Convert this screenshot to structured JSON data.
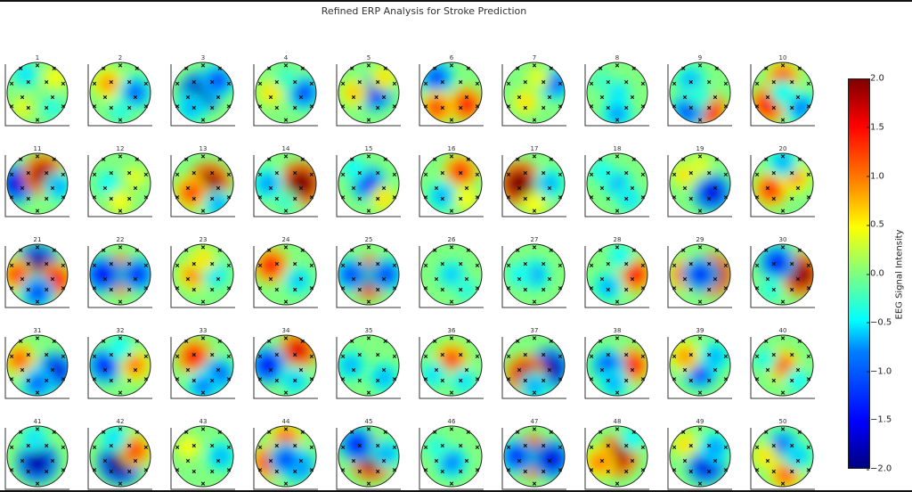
{
  "chart_data": {
    "type": "heatmap",
    "title": "Refined ERP Analysis for Stroke Prediction",
    "subplots": [
      {
        "label": "1",
        "blobs": [
          [
            -0.4,
            -0.6,
            -0.6
          ],
          [
            0.5,
            0.5,
            -0.4
          ],
          [
            0.6,
            -0.5,
            0.5
          ],
          [
            -0.5,
            0.5,
            0.4
          ]
        ]
      },
      {
        "label": "2",
        "blobs": [
          [
            -0.4,
            -0.3,
            0.9
          ],
          [
            0.5,
            0,
            -1.1
          ],
          [
            0,
            0.6,
            -0.4
          ]
        ]
      },
      {
        "label": "3",
        "blobs": [
          [
            -0.1,
            0,
            -1.8
          ],
          [
            0.5,
            -0.4,
            -1.2
          ],
          [
            -0.4,
            0.5,
            -0.8
          ]
        ]
      },
      {
        "label": "4",
        "blobs": [
          [
            -0.5,
            0,
            0.6
          ],
          [
            0.6,
            0,
            -1.2
          ],
          [
            0,
            -0.5,
            -0.3
          ]
        ]
      },
      {
        "label": "5",
        "blobs": [
          [
            0.2,
            0,
            -1.4
          ],
          [
            -0.5,
            0,
            0.7
          ],
          [
            0.5,
            -0.5,
            0.6
          ]
        ]
      },
      {
        "label": "6",
        "blobs": [
          [
            -0.5,
            -0.5,
            -1.2
          ],
          [
            0.5,
            0.4,
            1.4
          ],
          [
            -0.5,
            0.5,
            1.2
          ]
        ]
      },
      {
        "label": "7",
        "blobs": [
          [
            0.7,
            -0.3,
            -1.1
          ],
          [
            -0.3,
            0.3,
            0.6
          ],
          [
            0.1,
            -0.5,
            0.4
          ]
        ]
      },
      {
        "label": "8",
        "blobs": [
          [
            0,
            0,
            -0.6
          ],
          [
            0,
            0.7,
            -0.9
          ],
          [
            -0.5,
            -0.4,
            -0.3
          ]
        ]
      },
      {
        "label": "9",
        "blobs": [
          [
            -0.3,
            -0.4,
            -0.8
          ],
          [
            0.3,
            0.6,
            1.5
          ],
          [
            -0.4,
            0.6,
            -1.2
          ],
          [
            0,
            0.1,
            -0.4
          ]
        ]
      },
      {
        "label": "10",
        "blobs": [
          [
            0,
            -0.5,
            1.2
          ],
          [
            -0.5,
            0.4,
            1.5
          ],
          [
            0.6,
            0.5,
            -1
          ],
          [
            0,
            0,
            -0.5
          ]
        ]
      },
      {
        "label": "11",
        "blobs": [
          [
            -0.7,
            0,
            -1.6
          ],
          [
            0.2,
            -0.3,
            1.8
          ],
          [
            0.7,
            0.1,
            -0.8
          ]
        ]
      },
      {
        "label": "12",
        "blobs": [
          [
            -0.4,
            0,
            -0.5
          ],
          [
            0.5,
            -0.2,
            0.4
          ],
          [
            0,
            0.6,
            0.5
          ]
        ]
      },
      {
        "label": "13",
        "blobs": [
          [
            0.2,
            0,
            1.9
          ],
          [
            -0.4,
            0.3,
            1.2
          ],
          [
            0.5,
            0.7,
            -0.8
          ]
        ]
      },
      {
        "label": "14",
        "blobs": [
          [
            0.5,
            0,
            2
          ],
          [
            -0.6,
            0,
            -0.9
          ],
          [
            0,
            0.6,
            -0.3
          ]
        ]
      },
      {
        "label": "15",
        "blobs": [
          [
            0,
            0,
            -1.3
          ],
          [
            -0.5,
            -0.5,
            -0.5
          ],
          [
            0.5,
            0.5,
            0.6
          ]
        ]
      },
      {
        "label": "16",
        "blobs": [
          [
            0.3,
            -0.4,
            1.3
          ],
          [
            -0.3,
            0.4,
            -0.8
          ],
          [
            0.5,
            0.5,
            0.5
          ]
        ]
      },
      {
        "label": "17",
        "blobs": [
          [
            -0.5,
            0,
            2
          ],
          [
            0.5,
            0,
            -0.8
          ],
          [
            0,
            0.7,
            0.5
          ]
        ]
      },
      {
        "label": "18",
        "blobs": [
          [
            0,
            0,
            -0.8
          ],
          [
            -0.5,
            -0.4,
            -0.5
          ],
          [
            0.4,
            0.5,
            -0.6
          ]
        ]
      },
      {
        "label": "19",
        "blobs": [
          [
            0.4,
            0.3,
            -1.6
          ],
          [
            -0.5,
            -0.3,
            0.6
          ],
          [
            0,
            -0.6,
            0.4
          ]
        ]
      },
      {
        "label": "20",
        "blobs": [
          [
            -0.4,
            0.2,
            1.3
          ],
          [
            0.4,
            -0.2,
            0.9
          ],
          [
            0,
            -0.7,
            -0.8
          ]
        ]
      },
      {
        "label": "21",
        "blobs": [
          [
            0,
            -0.3,
            -1.9
          ],
          [
            0.6,
            0.2,
            1.5
          ],
          [
            -0.7,
            0,
            1.2
          ],
          [
            0,
            0.6,
            -1.2
          ]
        ]
      },
      {
        "label": "22",
        "blobs": [
          [
            0,
            0,
            1.7
          ],
          [
            -0.6,
            0,
            -1.5
          ],
          [
            0.6,
            0,
            -1.3
          ]
        ]
      },
      {
        "label": "23",
        "blobs": [
          [
            -0.3,
            0,
            1
          ],
          [
            0.4,
            0,
            -0.6
          ],
          [
            0,
            -0.5,
            0.6
          ]
        ]
      },
      {
        "label": "24",
        "blobs": [
          [
            -0.5,
            -0.3,
            1.4
          ],
          [
            0.4,
            0.2,
            -0.7
          ]
        ]
      },
      {
        "label": "25",
        "blobs": [
          [
            0,
            0.1,
            1.9
          ],
          [
            -0.6,
            0,
            -1.2
          ],
          [
            0.6,
            0,
            -1.2
          ]
        ]
      },
      {
        "label": "26",
        "blobs": [
          [
            0,
            0,
            -0.7
          ],
          [
            0.5,
            0.5,
            -0.4
          ]
        ]
      },
      {
        "label": "27",
        "blobs": [
          [
            0,
            0,
            -0.9
          ],
          [
            -0.5,
            0,
            -0.5
          ]
        ]
      },
      {
        "label": "28",
        "blobs": [
          [
            0.6,
            0,
            1.4
          ],
          [
            -0.3,
            0.4,
            -0.8
          ],
          [
            0.1,
            -0.6,
            -0.5
          ]
        ]
      },
      {
        "label": "29",
        "blobs": [
          [
            0.4,
            0,
            1.9
          ],
          [
            -0.5,
            0,
            1.2
          ],
          [
            0,
            0,
            -1.3
          ]
        ]
      },
      {
        "label": "30",
        "blobs": [
          [
            0.6,
            0,
            1.9
          ],
          [
            -0.2,
            -0.4,
            -1.4
          ],
          [
            -0.4,
            0.5,
            -0.4
          ]
        ]
      },
      {
        "label": "31",
        "blobs": [
          [
            0.6,
            0.2,
            -1.6
          ],
          [
            -0.6,
            -0.2,
            1.1
          ],
          [
            0,
            0.6,
            -1.1
          ]
        ]
      },
      {
        "label": "32",
        "blobs": [
          [
            -0.5,
            0,
            -1.4
          ],
          [
            0.5,
            0,
            1
          ],
          [
            0,
            -0.6,
            -0.5
          ]
        ]
      },
      {
        "label": "33",
        "blobs": [
          [
            -0.3,
            -0.3,
            1.4
          ],
          [
            0.5,
            0.3,
            -1.2
          ],
          [
            0,
            0.7,
            -1
          ]
        ]
      },
      {
        "label": "34",
        "blobs": [
          [
            0.4,
            -0.5,
            1.6
          ],
          [
            -0.6,
            0,
            -1.5
          ],
          [
            0.3,
            0.5,
            -0.7
          ]
        ]
      },
      {
        "label": "35",
        "blobs": [
          [
            -0.6,
            0,
            -0.8
          ],
          [
            0.5,
            0.4,
            -0.8
          ]
        ]
      },
      {
        "label": "36",
        "blobs": [
          [
            0,
            -0.2,
            1.2
          ],
          [
            -0.6,
            0.3,
            -0.6
          ],
          [
            0.4,
            0.5,
            -0.6
          ]
        ]
      },
      {
        "label": "37",
        "blobs": [
          [
            0.5,
            0.1,
            -1.8
          ],
          [
            -0.3,
            0.3,
            1.7
          ],
          [
            0,
            0.7,
            -0.8
          ]
        ]
      },
      {
        "label": "38",
        "blobs": [
          [
            0.5,
            0,
            1.4
          ],
          [
            -0.3,
            0,
            -1.2
          ],
          [
            -0.1,
            0.6,
            -0.8
          ]
        ]
      },
      {
        "label": "39",
        "blobs": [
          [
            0,
            0.2,
            -1.3
          ],
          [
            -0.5,
            -0.3,
            0.9
          ],
          [
            0.5,
            -0.3,
            -0.8
          ]
        ]
      },
      {
        "label": "40",
        "blobs": [
          [
            0,
            0,
            1.1
          ],
          [
            0.5,
            0.5,
            -0.5
          ],
          [
            -0.6,
            -0.2,
            -0.4
          ]
        ]
      },
      {
        "label": "41",
        "blobs": [
          [
            0,
            0.2,
            -1.8
          ],
          [
            -0.1,
            -0.6,
            -0.6
          ]
        ]
      },
      {
        "label": "42",
        "blobs": [
          [
            0,
            0.2,
            -2
          ],
          [
            0.5,
            -0.2,
            1.2
          ],
          [
            -0.2,
            -0.6,
            -0.6
          ]
        ]
      },
      {
        "label": "43",
        "blobs": [
          [
            0.6,
            0,
            -0.8
          ],
          [
            -0.5,
            -0.3,
            0.5
          ]
        ]
      },
      {
        "label": "44",
        "blobs": [
          [
            0,
            -0.6,
            1.1
          ],
          [
            -0.6,
            0.2,
            1.3
          ],
          [
            0.4,
            0.3,
            -1.2
          ],
          [
            0,
            0.1,
            -1.2
          ]
        ]
      },
      {
        "label": "45",
        "blobs": [
          [
            0.1,
            0.1,
            1.9
          ],
          [
            -0.4,
            -0.4,
            -1.4
          ],
          [
            0.6,
            -0.1,
            -0.8
          ]
        ]
      },
      {
        "label": "46",
        "blobs": [
          [
            0,
            0.2,
            -1
          ],
          [
            -0.5,
            -0.3,
            -0.4
          ]
        ]
      },
      {
        "label": "47",
        "blobs": [
          [
            -0.1,
            0,
            1.9
          ],
          [
            0.6,
            0.1,
            -1.6
          ],
          [
            -0.6,
            0,
            -1.3
          ]
        ]
      },
      {
        "label": "48",
        "blobs": [
          [
            0,
            0,
            1.8
          ],
          [
            -0.6,
            0.2,
            1
          ],
          [
            0.5,
            -0.6,
            -0.5
          ]
        ]
      },
      {
        "label": "49",
        "blobs": [
          [
            0.2,
            0.3,
            -1.6
          ],
          [
            -0.5,
            -0.4,
            0.6
          ],
          [
            0.5,
            -0.3,
            -0.9
          ]
        ]
      },
      {
        "label": "50",
        "blobs": [
          [
            0,
            -0.3,
            -1.2
          ],
          [
            -0.6,
            0,
            0.6
          ],
          [
            0.1,
            0.6,
            1.1
          ],
          [
            0.5,
            0,
            -0.7
          ]
        ]
      }
    ],
    "colorbar": {
      "label": "EEG Signal Intensity",
      "range": [
        -2.0,
        2.0
      ],
      "ticks": [
        {
          "value": 2.0,
          "text": "2.0"
        },
        {
          "value": 1.5,
          "text": "1.5"
        },
        {
          "value": 1.0,
          "text": "1.0"
        },
        {
          "value": 0.5,
          "text": "0.5"
        },
        {
          "value": 0.0,
          "text": "0.0"
        },
        {
          "value": -0.5,
          "text": "−0.5"
        },
        {
          "value": -1.0,
          "text": "−1.0"
        },
        {
          "value": -1.5,
          "text": "−1.5"
        },
        {
          "value": -2.0,
          "text": "−2.0"
        }
      ]
    },
    "colormap": "jet"
  }
}
